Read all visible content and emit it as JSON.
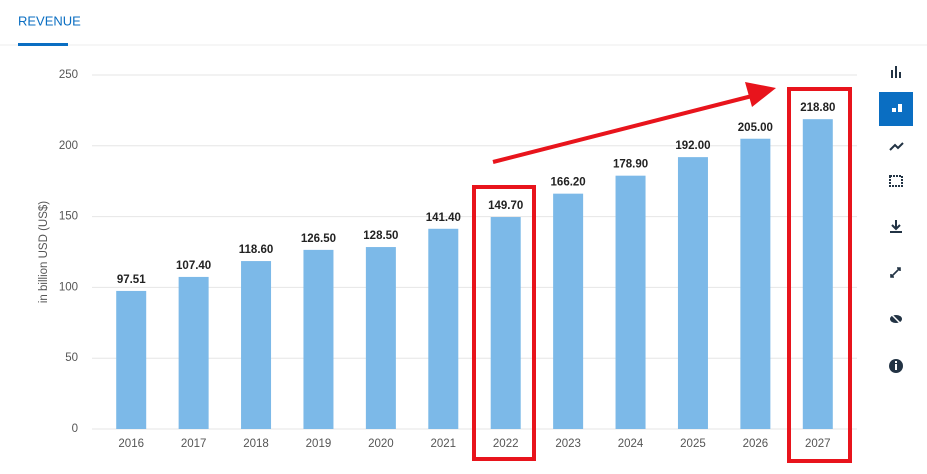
{
  "chart_data": {
    "type": "bar",
    "title": "REVENUE",
    "y_label": "in billion USD (US$)",
    "categories": [
      "2016",
      "2017",
      "2018",
      "2019",
      "2020",
      "2021",
      "2022",
      "2023",
      "2024",
      "2025",
      "2026",
      "2027"
    ],
    "values": [
      97.51,
      107.4,
      118.6,
      126.5,
      128.5,
      141.4,
      149.7,
      166.2,
      178.9,
      192,
      205,
      218.8
    ],
    "value_labels": [
      "97.51",
      "107.40",
      "118.60",
      "126.50",
      "128.50",
      "141.40",
      "149.70",
      "166.20",
      "178.90",
      "192.00",
      "205.00",
      "218.80"
    ],
    "color": "#7cb9e8",
    "ylim": [
      0,
      250
    ],
    "yticks": [
      0,
      50,
      100,
      150,
      200,
      250
    ],
    "grid": true
  }
}
